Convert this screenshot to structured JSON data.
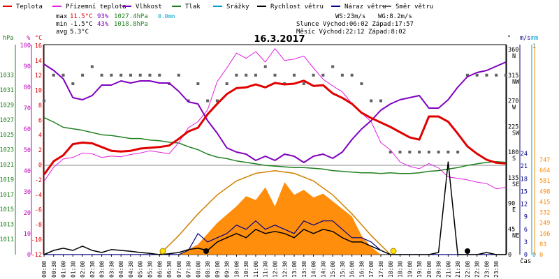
{
  "legend": [
    {
      "label": "Teplota",
      "color": "#e00000"
    },
    {
      "label": "Přízemní teplota",
      "color": "#e020e0"
    },
    {
      "label": "Vlhkost",
      "color": "#8000c0"
    },
    {
      "label": "Tlak",
      "color": "#208020"
    },
    {
      "label": "Srážky",
      "color": "#00a0d0"
    },
    {
      "label": "Rychlost větru",
      "color": "#000000"
    },
    {
      "label": "Náraz větru",
      "color": "#000080"
    },
    {
      "label": "Směr větru",
      "color": "#606060"
    }
  ],
  "stats": {
    "max_label": "max",
    "max_temp": "11.5°C",
    "max_hum": "93%",
    "max_press": "1027.4hPa",
    "max_rain": "0.0mm",
    "min_label": "min",
    "min_temp": "-1.5°C",
    "min_hum": "43%",
    "min_press": "1018.8hPa",
    "avg_label": "avg",
    "avg_temp": "5.3°C",
    "ws": "WS:23m/s",
    "wg": "WG:8.2m/s",
    "sun": "Slunce Východ:06:02  Západ:17:57",
    "moon": "Měsíc  Východ:22:12  Západ:8:02"
  },
  "chart_data": {
    "type": "line",
    "title": "16.3.2017",
    "xlabel": "čas",
    "x_ticks": [
      "00:00",
      "00:30",
      "01:00",
      "01:30",
      "02:00",
      "02:30",
      "03:00",
      "03:30",
      "04:00",
      "04:30",
      "05:00",
      "05:30",
      "06:00",
      "06:30",
      "07:00",
      "07:30",
      "08:00",
      "08:30",
      "09:00",
      "09:30",
      "10:00",
      "10:30",
      "11:00",
      "11:30",
      "12:00",
      "12:30",
      "13:00",
      "13:30",
      "14:00",
      "14:30",
      "15:00",
      "15:30",
      "16:00",
      "16:30",
      "17:00",
      "17:30",
      "18:00",
      "18:30",
      "19:00",
      "19:30",
      "20:00",
      "20:30",
      "21:00",
      "21:30",
      "22:00",
      "22:30",
      "23:00",
      "23:30"
    ],
    "axes": {
      "hPa": {
        "label": "hPa",
        "ticks": [
          "1033",
          "1031",
          "1029",
          "1027",
          "1025",
          "1023",
          "1021",
          "1019",
          "1017",
          "1015",
          "1013",
          "1011"
        ]
      },
      "pct": {
        "label": "%",
        "ticks": [
          "100",
          "90",
          "80",
          "70",
          "60",
          "50",
          "40",
          "30",
          "20",
          "10",
          "0"
        ]
      },
      "temp": {
        "label": "°C",
        "ticks": [
          "16",
          "14",
          "12",
          "10",
          "8",
          "6",
          "4",
          "2",
          "0",
          "-2",
          "-4",
          "-6",
          "-8",
          "-10",
          "-12"
        ]
      },
      "dir": {
        "label": "°",
        "ticks": [
          "360 N",
          "315 NW",
          "270 W",
          "225 SW",
          "180 S",
          "135 SE",
          "90 E",
          "45 NE",
          "0"
        ]
      },
      "ms": {
        "label": "m/s",
        "ticks": [
          "24",
          "21",
          "18",
          "15",
          "12",
          "9",
          "6",
          "3",
          "0"
        ]
      },
      "mm": {
        "label": "mm",
        "ticks": [
          "1",
          "0"
        ]
      },
      "rad": {
        "label": "",
        "ticks": [
          "747",
          "664",
          "581",
          "498",
          "415",
          "332",
          "249",
          "166",
          "83",
          "0"
        ]
      }
    },
    "series": [
      {
        "name": "Teplota",
        "unit": "°C",
        "color": "#e00000",
        "x": [
          0,
          0.5,
          1,
          1.5,
          2,
          2.5,
          3,
          3.5,
          4,
          4.5,
          5,
          5.5,
          6,
          6.5,
          7,
          7.5,
          8,
          8.5,
          9,
          9.5,
          10,
          10.5,
          11,
          11.5,
          12,
          12.5,
          13,
          13.5,
          14,
          14.5,
          15,
          15.5,
          16,
          16.5,
          17,
          17.5,
          18,
          18.5,
          19,
          19.5,
          20,
          20.5,
          21,
          21.5,
          22,
          22.5,
          23,
          23.5,
          24
        ],
        "y": [
          -1.3,
          0.5,
          1.3,
          2.8,
          3.0,
          2.9,
          2.4,
          1.9,
          1.8,
          1.9,
          2.2,
          2.3,
          2.4,
          2.6,
          3.5,
          4.5,
          5.0,
          6.8,
          8.2,
          9.5,
          10.3,
          10.4,
          10.8,
          10.4,
          11.0,
          10.8,
          10.9,
          11.3,
          10.6,
          10.7,
          9.6,
          9.0,
          8.2,
          7.0,
          6.3,
          5.7,
          5.1,
          4.4,
          3.7,
          3.4,
          6.5,
          6.5,
          5.8,
          4.2,
          2.5,
          1.5,
          0.7,
          0.3,
          0.2
        ]
      },
      {
        "name": "Přízemní teplota",
        "unit": "°C",
        "color": "#e020e0",
        "x": [
          0,
          0.5,
          1,
          1.5,
          2,
          2.5,
          3,
          3.5,
          4,
          4.5,
          5,
          5.5,
          6,
          6.5,
          7,
          7.5,
          8,
          8.5,
          9,
          9.5,
          10,
          10.5,
          11,
          11.5,
          12,
          12.5,
          13,
          13.5,
          14,
          14.5,
          15,
          15.5,
          16,
          16.5,
          17,
          17.5,
          18,
          18.5,
          19,
          19.5,
          20,
          20.5,
          21,
          21.5,
          22,
          22.5,
          23,
          23.5,
          24
        ],
        "y": [
          -2.2,
          -0.3,
          0.8,
          1.0,
          1.6,
          1.5,
          1.0,
          1.2,
          1.1,
          1.4,
          1.6,
          1.9,
          1.7,
          1.5,
          3.0,
          5.0,
          5.8,
          7.4,
          11.2,
          13.0,
          15.0,
          14.3,
          15.2,
          13.8,
          15.6,
          14.0,
          14.2,
          14.6,
          13.0,
          11.5,
          10.6,
          9.8,
          8.2,
          7.0,
          5.8,
          3.0,
          2.0,
          0.4,
          -0.2,
          -0.5,
          0.2,
          -0.4,
          -1.6,
          -1.8,
          -2.0,
          -2.3,
          -2.5,
          -3.2,
          -3.0
        ]
      },
      {
        "name": "Vlhkost",
        "unit": "%",
        "color": "#8000c0",
        "x": [
          0,
          0.5,
          1,
          1.5,
          2,
          2.5,
          3,
          3.5,
          4,
          4.5,
          5,
          5.5,
          6,
          6.5,
          7,
          7.5,
          8,
          8.5,
          9,
          9.5,
          10,
          10.5,
          11,
          11.5,
          12,
          12.5,
          13,
          13.5,
          14,
          14.5,
          15,
          15.5,
          16,
          16.5,
          17,
          17.5,
          18,
          18.5,
          19,
          19.5,
          20,
          20.5,
          21,
          21.5,
          22,
          22.5,
          23,
          23.5,
          24
        ],
        "y": [
          91,
          88,
          84,
          75,
          74,
          76,
          81,
          81,
          83,
          82,
          83,
          83,
          82,
          82,
          78,
          73,
          72,
          64,
          58,
          51,
          49,
          48,
          45,
          47,
          45,
          48,
          47,
          44,
          47,
          48,
          46,
          49,
          55,
          60,
          64,
          69,
          72,
          74,
          75,
          76,
          70,
          70,
          74,
          80,
          85,
          87,
          88,
          90,
          92
        ]
      },
      {
        "name": "Tlak",
        "unit": "hPa",
        "color": "#208020",
        "x": [
          0,
          0.5,
          1,
          1.5,
          2,
          2.5,
          3,
          3.5,
          4,
          4.5,
          5,
          5.5,
          6,
          6.5,
          7,
          7.5,
          8,
          8.5,
          9,
          9.5,
          10,
          10.5,
          11,
          11.5,
          12,
          12.5,
          13,
          13.5,
          14,
          14.5,
          15,
          15.5,
          16,
          16.5,
          17,
          17.5,
          18,
          18.5,
          19,
          19.5,
          20,
          20.5,
          21,
          21.5,
          22,
          22.5,
          23,
          23.5,
          24
        ],
        "y": [
          1027.3,
          1026.7,
          1026.0,
          1025.8,
          1025.6,
          1025.3,
          1025.0,
          1024.9,
          1024.7,
          1024.5,
          1024.5,
          1024.3,
          1024.2,
          1024.0,
          1023.9,
          1023.4,
          1023.0,
          1022.4,
          1022.0,
          1021.8,
          1021.5,
          1021.3,
          1021.1,
          1020.9,
          1020.8,
          1020.7,
          1020.6,
          1020.6,
          1020.5,
          1020.4,
          1020.2,
          1020.1,
          1020.0,
          1019.9,
          1019.9,
          1019.8,
          1019.9,
          1019.8,
          1019.8,
          1019.9,
          1020.1,
          1020.2,
          1020.4,
          1020.6,
          1020.9,
          1021.1,
          1021.3,
          1021.4,
          1021.3
        ]
      },
      {
        "name": "Rychlost větru",
        "unit": "m/s",
        "color": "#000000",
        "x": [
          0,
          0.5,
          1,
          1.5,
          2,
          2.5,
          3,
          3.5,
          4,
          4.5,
          5,
          5.5,
          6,
          6.5,
          7,
          7.5,
          8,
          8.5,
          9,
          9.5,
          10,
          10.5,
          11,
          11.5,
          12,
          12.5,
          13,
          13.5,
          14,
          14.5,
          15,
          15.5,
          16,
          16.5,
          17,
          17.5,
          18,
          18.5,
          19,
          19.5,
          20,
          20.5,
          21,
          21.5,
          22,
          22.5,
          23,
          23.5,
          24
        ],
        "y": [
          0,
          1,
          1.5,
          1,
          2,
          1,
          0.5,
          1.2,
          1,
          0.8,
          0.5,
          0.3,
          0,
          0.2,
          0.5,
          1.2,
          1.5,
          1,
          3,
          4,
          5,
          4,
          6,
          5,
          5.5,
          5,
          4,
          6,
          5,
          6,
          5.5,
          4,
          3,
          3,
          2,
          1,
          0,
          0,
          0,
          0,
          0,
          0.5,
          22,
          0,
          0,
          0,
          0.5,
          0,
          0
        ]
      },
      {
        "name": "Náraz větru",
        "unit": "m/s",
        "color": "#000080",
        "x": [
          0,
          0.5,
          1,
          1.5,
          2,
          2.5,
          3,
          3.5,
          4,
          4.5,
          5,
          5.5,
          6,
          6.5,
          7,
          7.5,
          8,
          8.5,
          9,
          9.5,
          10,
          10.5,
          11,
          11.5,
          12,
          12.5,
          13,
          13.5,
          14,
          14.5,
          15,
          15.5,
          16,
          16.5,
          17,
          17.5,
          18,
          18.5,
          19,
          19.5,
          20,
          20.5,
          21,
          21.5,
          22,
          22.5,
          23,
          23.5,
          24
        ],
        "y": [
          0,
          0,
          0,
          0,
          0,
          0,
          0,
          0,
          0,
          0,
          0,
          0,
          0,
          0,
          0,
          1,
          5,
          3,
          4,
          5,
          7,
          6,
          8,
          6,
          7,
          6,
          5,
          8,
          7,
          8,
          8,
          6,
          4,
          4,
          3,
          1,
          0,
          0,
          0,
          0,
          0,
          0,
          0,
          0,
          0,
          0,
          0,
          0,
          0
        ]
      },
      {
        "name": "Směr větru",
        "unit": "°",
        "color": "#606060",
        "x": [
          0,
          0.5,
          1,
          1.5,
          2,
          2.5,
          3,
          3.5,
          4,
          4.5,
          5,
          5.5,
          6,
          6.5,
          7,
          7.5,
          8,
          8.5,
          9,
          9.5,
          10,
          10.5,
          11,
          11.5,
          12,
          12.5,
          13,
          13.5,
          14,
          14.5,
          15,
          15.5,
          16,
          16.5,
          17,
          17.5,
          18,
          18.5,
          19,
          19.5,
          20,
          20.5,
          21,
          21.5,
          22,
          22.5,
          23,
          23.5,
          24
        ],
        "y": [
          270,
          315,
          315,
          300,
          315,
          330,
          315,
          315,
          315,
          315,
          315,
          315,
          315,
          300,
          315,
          270,
          300,
          270,
          270,
          300,
          315,
          315,
          315,
          330,
          315,
          300,
          315,
          300,
          315,
          315,
          330,
          315,
          315,
          300,
          270,
          270,
          180,
          180,
          180,
          180,
          180,
          180,
          180,
          180,
          315,
          315,
          315,
          315,
          315
        ]
      },
      {
        "name": "Sluneční záření",
        "unit": "W/m²",
        "color": "#ff8800",
        "x": [
          0,
          6,
          7,
          8,
          9,
          10,
          10.5,
          11,
          11.5,
          12,
          12.5,
          13,
          13.5,
          14,
          14.5,
          15,
          15.5,
          16,
          16.5,
          17,
          17.5,
          18,
          24
        ],
        "y": [
          0,
          0,
          0,
          80,
          250,
          380,
          460,
          430,
          530,
          380,
          570,
          470,
          510,
          450,
          480,
          420,
          360,
          300,
          150,
          60,
          0,
          0,
          0
        ]
      },
      {
        "name": "Teoretické záření",
        "unit": "W/m²",
        "color": "#ff8800",
        "x": [
          6,
          7,
          8,
          9,
          10,
          11,
          12,
          13,
          14,
          15,
          16,
          17,
          18
        ],
        "y": [
          0,
          150,
          320,
          470,
          580,
          640,
          660,
          640,
          580,
          470,
          320,
          150,
          0
        ]
      }
    ]
  }
}
